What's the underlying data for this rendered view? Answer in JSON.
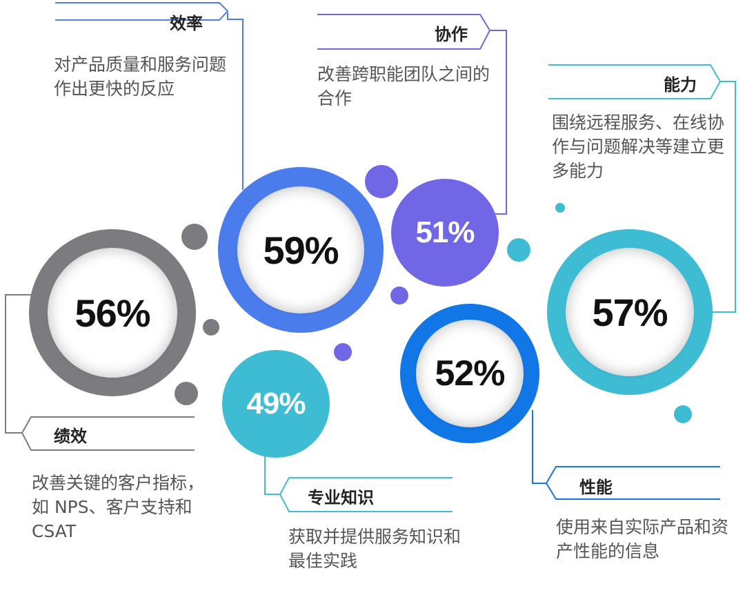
{
  "metrics": [
    {
      "id": "efficiency",
      "title": "效率",
      "value": "59%",
      "description": "对产品质量和服务问题作出更快的反应",
      "color": "#4a7cec"
    },
    {
      "id": "collaboration",
      "title": "协作",
      "value": "51%",
      "description": "改善跨职能团队之间的合作",
      "color": "#7066e6"
    },
    {
      "id": "capability",
      "title": "能力",
      "value": "57%",
      "description": "围绕远程服务、在线协作与问题解决等建立更多能力",
      "color": "#3dbcd4"
    },
    {
      "id": "performance",
      "title": "绩效",
      "value": "56%",
      "description": "改善关键的客户指标，如 NPS、客户支持和CSAT",
      "color": "#7b7b80"
    },
    {
      "id": "expertise",
      "title": "专业知识",
      "value": "49%",
      "description": "获取并提供服务知识和最佳实践",
      "color": "#3dbcd4"
    },
    {
      "id": "performance2",
      "title": "性能",
      "value": "52%",
      "description": "使用来自实际产品和资产性能的信息",
      "color": "#1176e6"
    }
  ]
}
